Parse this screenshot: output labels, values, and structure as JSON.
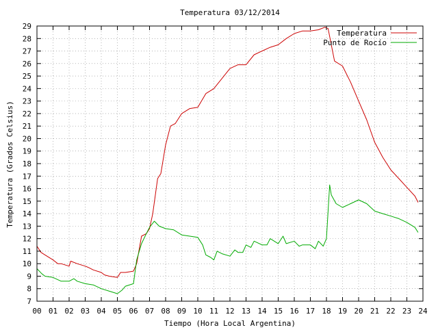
{
  "chart_data": {
    "type": "line",
    "title": "Temperatura 03/12/2014",
    "xlabel": "Tiempo (Hora Local Argentina)",
    "ylabel": "Temperatura (Grados Celsius)",
    "xlim": [
      0,
      24
    ],
    "ylim": [
      7,
      29
    ],
    "x_ticks": [
      "00",
      "01",
      "02",
      "03",
      "04",
      "05",
      "06",
      "07",
      "08",
      "09",
      "10",
      "11",
      "12",
      "13",
      "14",
      "15",
      "16",
      "17",
      "18",
      "19",
      "20",
      "21",
      "22",
      "23",
      "24"
    ],
    "y_ticks": [
      "7",
      "8",
      "9",
      "10",
      "11",
      "12",
      "13",
      "14",
      "15",
      "16",
      "17",
      "18",
      "19",
      "20",
      "21",
      "22",
      "23",
      "24",
      "25",
      "26",
      "27",
      "28",
      "29"
    ],
    "grid": true,
    "legend_position": "top-right",
    "series": [
      {
        "name": "Temperatura",
        "color": "#cc0000",
        "x": [
          0.0,
          0.25,
          0.5,
          1.0,
          1.3,
          1.5,
          2.0,
          2.1,
          2.5,
          3.0,
          3.2,
          3.5,
          4.0,
          4.2,
          4.5,
          5.0,
          5.2,
          5.5,
          6.0,
          6.2,
          6.5,
          6.8,
          7.0,
          7.2,
          7.5,
          7.7,
          8.0,
          8.3,
          8.6,
          9.0,
          9.5,
          10.0,
          10.5,
          11.0,
          11.5,
          12.0,
          12.5,
          13.0,
          13.5,
          14.0,
          14.5,
          15.0,
          15.5,
          16.0,
          16.5,
          17.0,
          17.5,
          17.9,
          18.1,
          18.5,
          19.0,
          19.5,
          20.0,
          20.5,
          21.0,
          21.5,
          22.0,
          22.5,
          23.0,
          23.5,
          23.7
        ],
        "y": [
          11.4,
          10.9,
          10.7,
          10.3,
          10.0,
          10.0,
          9.8,
          10.2,
          10.0,
          9.8,
          9.7,
          9.5,
          9.3,
          9.1,
          9.0,
          8.9,
          9.3,
          9.3,
          9.4,
          10.0,
          12.2,
          12.4,
          12.8,
          14.0,
          16.8,
          17.2,
          19.5,
          21.0,
          21.2,
          22.0,
          22.4,
          22.5,
          23.6,
          24.0,
          24.8,
          25.6,
          25.9,
          25.9,
          26.7,
          27.0,
          27.3,
          27.5,
          28.0,
          28.4,
          28.6,
          28.6,
          28.7,
          28.9,
          28.8,
          26.2,
          25.8,
          24.5,
          23.0,
          21.5,
          19.7,
          18.5,
          17.5,
          16.8,
          16.1,
          15.4,
          14.9
        ]
      },
      {
        "name": "Punto de Rocío",
        "color": "#00aa00",
        "x": [
          0.0,
          0.3,
          0.5,
          1.0,
          1.5,
          2.0,
          2.3,
          2.5,
          3.0,
          3.5,
          4.0,
          4.5,
          5.0,
          5.3,
          5.5,
          6.0,
          6.2,
          6.5,
          6.8,
          7.0,
          7.3,
          7.6,
          8.0,
          8.5,
          9.0,
          9.5,
          10.0,
          10.3,
          10.5,
          10.8,
          11.0,
          11.2,
          11.5,
          12.0,
          12.3,
          12.5,
          12.8,
          13.0,
          13.3,
          13.5,
          14.0,
          14.3,
          14.5,
          15.0,
          15.3,
          15.5,
          16.0,
          16.3,
          16.5,
          17.0,
          17.3,
          17.5,
          17.8,
          18.0,
          18.2,
          18.3,
          18.6,
          19.0,
          19.5,
          20.0,
          20.5,
          21.0,
          21.5,
          22.0,
          22.5,
          23.0,
          23.5,
          23.7
        ],
        "y": [
          9.6,
          9.2,
          9.0,
          8.9,
          8.6,
          8.6,
          8.8,
          8.6,
          8.4,
          8.3,
          8.0,
          7.8,
          7.6,
          7.9,
          8.2,
          8.4,
          10.3,
          11.6,
          12.4,
          12.9,
          13.4,
          13.0,
          12.8,
          12.7,
          12.3,
          12.2,
          12.1,
          11.5,
          10.7,
          10.5,
          10.3,
          11.0,
          10.8,
          10.6,
          11.1,
          10.9,
          10.9,
          11.5,
          11.3,
          11.8,
          11.5,
          11.5,
          12.0,
          11.6,
          12.2,
          11.6,
          11.8,
          11.4,
          11.5,
          11.5,
          11.2,
          11.8,
          11.4,
          12.0,
          16.3,
          15.5,
          14.8,
          14.5,
          14.8,
          15.1,
          14.8,
          14.2,
          14.0,
          13.8,
          13.6,
          13.3,
          12.9,
          12.5
        ]
      }
    ]
  }
}
